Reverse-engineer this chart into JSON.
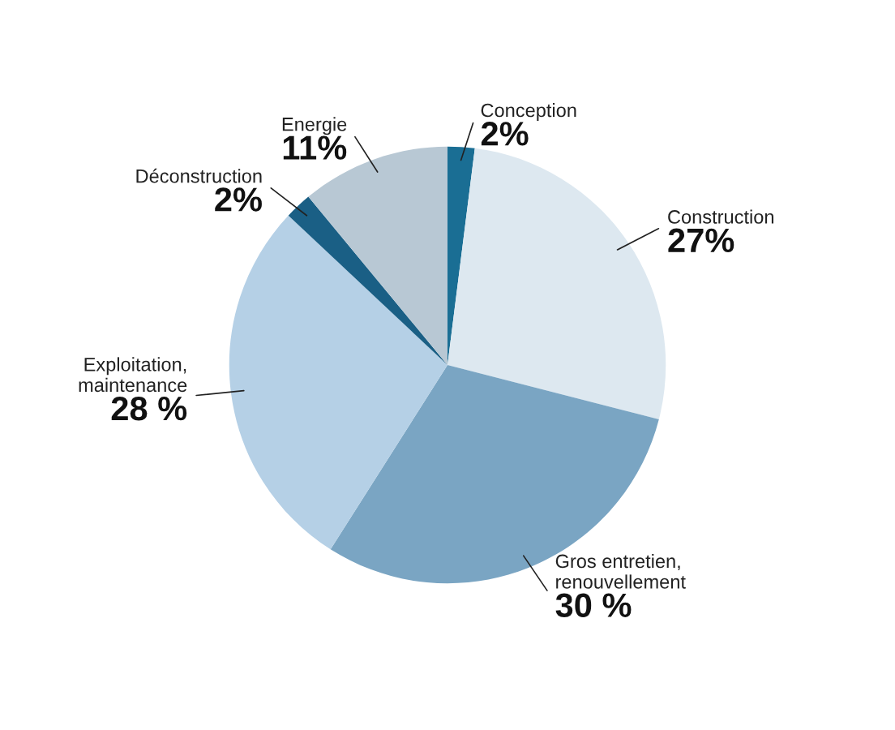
{
  "chart_data": {
    "type": "pie",
    "categories": [
      "Conception",
      "Construction",
      "Gros entretien,\nrenouvellement",
      "Exploitation,\nmaintenance",
      "Déconstruction",
      "Energie"
    ],
    "values": [
      2,
      27,
      30,
      28,
      2,
      11
    ],
    "value_labels": [
      "2%",
      "27%",
      "30 %",
      "28 %",
      "2%",
      "11%"
    ],
    "colors": [
      "#1a6e94",
      "#dde8f0",
      "#7aa5c3",
      "#b5d0e6",
      "#1a5f85",
      "#b8c8d4"
    ]
  }
}
